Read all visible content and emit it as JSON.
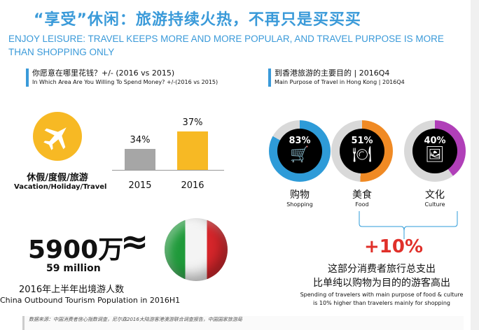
{
  "header": {
    "title": "“享受”休闲：旅游持续火热，不再只是买买买",
    "subtitle": "ENJOY LEISURE: TRAVEL KEEPS MORE AND MORE POPULAR, AND TRAVEL PURPOSE IS MORE THAN SHOPPING ONLY"
  },
  "left": {
    "heading_zh": "你愿意在哪里花钱？+/- (2016 vs 2015)",
    "heading_en": "In Which Area Are You Willing To Spend Money? +/-(2016 vs 2015)",
    "category_zh": "休假/度假/旅游",
    "category_en": "Vacation/Holiday/Travel",
    "icon": "airplane-icon",
    "bars": [
      {
        "year": "2015",
        "label": "34%",
        "value": 34,
        "color": "#a6a6a6"
      },
      {
        "year": "2016",
        "label": "37%",
        "value": 37,
        "color": "#f7b924"
      }
    ]
  },
  "right": {
    "heading_zh": "到香港旅游的主要目的 | 2016Q4",
    "heading_en": "Main Purpose of Travel in Hong Kong | 2016Q4",
    "donuts": [
      {
        "label": "83%",
        "value": 83,
        "zh": "购物",
        "en": "Shopping",
        "color": "#2e9bd8",
        "icon": "shopping-cart-icon"
      },
      {
        "label": "51%",
        "value": 51,
        "zh": "美食",
        "en": "Food",
        "color": "#f08a24",
        "icon": "dining-icon"
      },
      {
        "label": "40%",
        "value": 40,
        "zh": "文化",
        "en": "Culture",
        "color": "#b03fb8",
        "icon": "photos-icon"
      }
    ],
    "increase": "+10%",
    "increase_color": "#e0302a",
    "note_zh_1": "这部分消费者旅行总支出",
    "note_zh_2": "比单纯以购物为目的的游客高出",
    "note_en_1": "Spending of travelers with main purpose of food & culture",
    "note_en_2": "is 10% higher than travelers mainly for shopping"
  },
  "population": {
    "big": "5900万",
    "approx": "≈",
    "million": "59 million",
    "zh": "2016年上半年出境游人数",
    "en": "China Outbound Tourism Population in 2016H1"
  },
  "footer": {
    "source": "数据来源：中国消费者信心指数调查，尼尔森2016大陆游客港澳游联合调查报告，中国国家旅游局"
  }
}
